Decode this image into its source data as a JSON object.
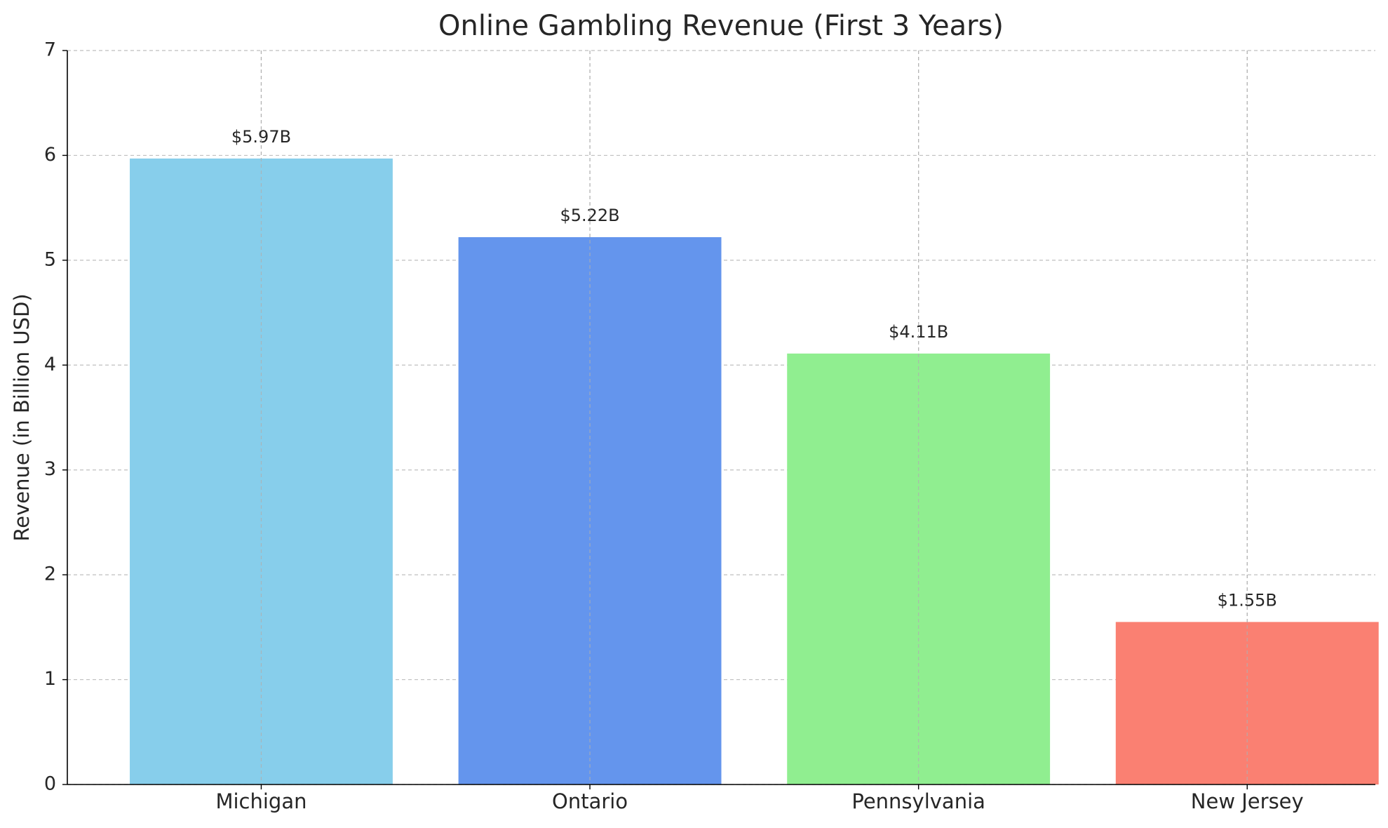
{
  "chart_data": {
    "type": "bar",
    "title": "Online Gambling Revenue (First 3 Years)",
    "y_label": "Revenue (in Billion USD)",
    "categories": [
      "Michigan",
      "Ontario",
      "Pennsylvania",
      "New Jersey"
    ],
    "values": [
      5.97,
      5.22,
      4.11,
      1.55
    ],
    "value_labels": [
      "$5.97B",
      "$5.22B",
      "$4.11B",
      "$1.55B"
    ],
    "colors": [
      "#87ceeb",
      "#6495ed",
      "#90ee90",
      "#fa8072"
    ],
    "ylim": [
      0,
      7
    ],
    "yticks": [
      0,
      1,
      2,
      3,
      4,
      5,
      6,
      7
    ],
    "grid": true
  }
}
